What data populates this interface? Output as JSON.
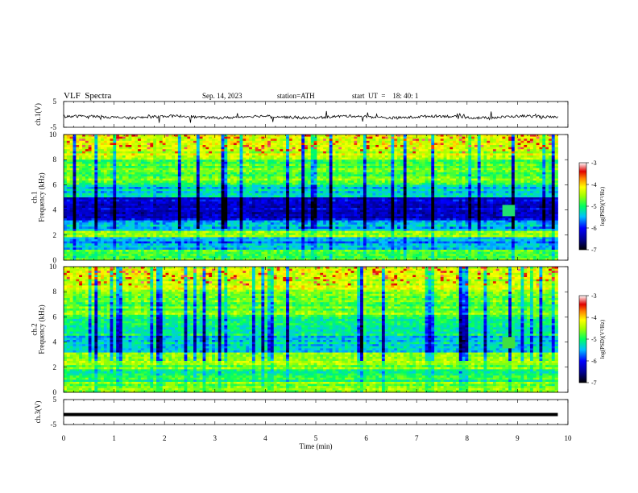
{
  "header": {
    "title": "VLF  Spectra",
    "date": "Sep. 14, 2023",
    "station": "station=ATH",
    "start_ut": "start  UT  =    18: 40: 1"
  },
  "chart_data": [
    {
      "type": "line",
      "panel": "ch1-waveform",
      "ylabel": "ch.1(V)",
      "ylim": [
        -5,
        5
      ],
      "yticks": [
        "5",
        "-5"
      ],
      "xlim": [
        0,
        10
      ],
      "series": [
        {
          "values_note": "noisy waveform near -1 V",
          "level": -1.0,
          "color": "#000000"
        }
      ]
    },
    {
      "type": "heatmap",
      "panel": "ch1-spectrogram",
      "ylabel": "ch.1\nFrequency (kHz)",
      "ylabel_lines": [
        "ch.1",
        "Frequency (kHz)"
      ],
      "ylim": [
        0,
        10
      ],
      "yticks": [
        "0",
        "2",
        "4",
        "6",
        "8",
        "10"
      ],
      "xlim": [
        0,
        10
      ],
      "colorbar": {
        "label": "log(PSD)(V²/Hz)",
        "range": [
          -7,
          -3
        ],
        "ticks": [
          "-3",
          "-4",
          "-5",
          "-6",
          "-7"
        ]
      }
    },
    {
      "type": "heatmap",
      "panel": "ch2-spectrogram",
      "ylabel_lines": [
        "ch.2",
        "Frequency (kHz)"
      ],
      "ylim": [
        0,
        10
      ],
      "yticks": [
        "0",
        "2",
        "4",
        "6",
        "8",
        "10"
      ],
      "xlim": [
        0,
        10
      ],
      "colorbar": {
        "label": "log(PSD)(V²/Hz)",
        "range": [
          -7,
          -3
        ],
        "ticks": [
          "-3",
          "-4",
          "-5",
          "-6",
          "-7"
        ]
      }
    },
    {
      "type": "line",
      "panel": "ch3-waveform",
      "ylabel": "ch.3(V)",
      "ylim": [
        -5,
        5
      ],
      "yticks": [
        "5",
        "-5"
      ],
      "xlim": [
        0,
        10
      ],
      "series": [
        {
          "values_note": "flat thick line near -1 V",
          "level": -1.0,
          "color": "#000000"
        }
      ]
    }
  ],
  "xaxis": {
    "label": "Time  (min)",
    "ticks": [
      "0",
      "1",
      "2",
      "3",
      "4",
      "5",
      "6",
      "7",
      "8",
      "9",
      "10"
    ],
    "data_end": 9.8
  },
  "colorbar_label": "log(PSD)(V²/Hz)"
}
